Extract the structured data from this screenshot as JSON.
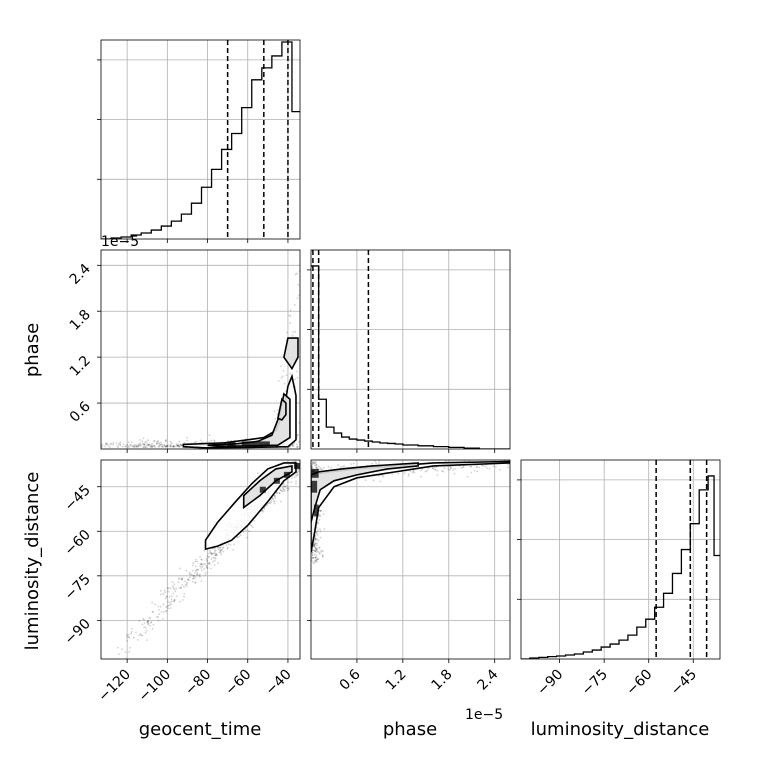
{
  "chart_data": {
    "type": "corner",
    "colors": {
      "hist_line": "#000000",
      "quantile_line": "#000000",
      "grid": "#b0b0b0",
      "sample_points": "#000000",
      "density_fill": "#000000",
      "background": "#ffffff"
    },
    "grid": true,
    "sci_offsets": {
      "top_hist": "1e−5",
      "phase_axis": "1e−5"
    },
    "parameters": [
      {
        "name": "geocent_time",
        "label": "geocent_time",
        "range": [
          -133,
          -34
        ],
        "ticks": [
          -120,
          -100,
          -80,
          -60,
          -40
        ],
        "tick_labels": [
          "−120",
          "−100",
          "−80",
          "−60",
          "−40"
        ]
      },
      {
        "name": "phase",
        "label": "phase",
        "range": [
          0.0,
          2.6
        ],
        "ticks": [
          0.6,
          1.2,
          1.8,
          2.4
        ],
        "tick_labels": [
          "0.6",
          "1.2",
          "1.8",
          "2.4"
        ]
      },
      {
        "name": "luminosity_distance",
        "label": "luminosity_distance",
        "range": [
          -103,
          -36
        ],
        "ticks": [
          -90,
          -75,
          -60,
          -45
        ],
        "tick_labels": [
          "−90",
          "−75",
          "−60",
          "−45"
        ]
      }
    ],
    "histograms": [
      {
        "param": "geocent_time",
        "quantiles": [
          -70,
          -52,
          -40
        ],
        "ylim": [
          0,
          1.0
        ],
        "bin_edges": [
          -133,
          -128,
          -123,
          -118,
          -113,
          -108,
          -103,
          -98,
          -93,
          -88,
          -83,
          -78,
          -73,
          -68,
          -63,
          -58,
          -53,
          -48,
          -43,
          -38,
          -34
        ],
        "counts": [
          0.0,
          0.005,
          0.01,
          0.02,
          0.03,
          0.045,
          0.065,
          0.09,
          0.125,
          0.18,
          0.26,
          0.35,
          0.45,
          0.53,
          0.66,
          0.8,
          0.86,
          0.92,
          0.99,
          0.64
        ]
      },
      {
        "param": "phase",
        "quantiles": [
          0.025,
          0.1,
          0.75
        ],
        "ylim": [
          0,
          1.0
        ],
        "bin_edges": [
          0.0,
          0.1,
          0.2,
          0.3,
          0.4,
          0.5,
          0.6,
          0.7,
          0.8,
          0.9,
          1.0,
          1.1,
          1.2,
          1.4,
          1.6,
          1.8,
          2.0,
          2.2,
          2.6
        ],
        "counts": [
          0.92,
          0.25,
          0.11,
          0.08,
          0.06,
          0.05,
          0.045,
          0.04,
          0.035,
          0.03,
          0.028,
          0.025,
          0.02,
          0.016,
          0.012,
          0.008,
          0.004,
          0.0
        ]
      },
      {
        "param": "luminosity_distance",
        "quantiles": [
          -57.5,
          -46,
          -40.5
        ],
        "ylim": [
          0,
          1.0
        ],
        "bin_edges": [
          -103,
          -100,
          -97,
          -94,
          -91,
          -88,
          -85,
          -82,
          -79,
          -76,
          -73,
          -70,
          -67,
          -64,
          -61,
          -58,
          -55,
          -52,
          -49,
          -46,
          -43,
          -40,
          -38,
          -36
        ],
        "counts": [
          0.0,
          0.005,
          0.008,
          0.012,
          0.015,
          0.02,
          0.025,
          0.035,
          0.045,
          0.06,
          0.075,
          0.095,
          0.12,
          0.16,
          0.2,
          0.26,
          0.33,
          0.43,
          0.55,
          0.68,
          0.85,
          0.92,
          0.52
        ]
      }
    ],
    "scatter_panels": [
      {
        "x": "geocent_time",
        "y": "phase",
        "contours": [
          [
            [
              -92,
              0.06
            ],
            [
              -72,
              0.08
            ],
            [
              -60,
              0.12
            ],
            [
              -52,
              0.15
            ],
            [
              -46,
              0.24
            ],
            [
              -42,
              0.5
            ],
            [
              -40,
              0.82
            ],
            [
              -38,
              0.95
            ],
            [
              -36,
              0.7
            ],
            [
              -36,
              0.12
            ],
            [
              -40,
              0.03
            ],
            [
              -60,
              0.02
            ],
            [
              -82,
              0.015
            ],
            [
              -92,
              0.03
            ],
            [
              -92,
              0.06
            ]
          ],
          [
            [
              -80,
              0.05
            ],
            [
              -65,
              0.07
            ],
            [
              -55,
              0.1
            ],
            [
              -48,
              0.18
            ],
            [
              -44,
              0.45
            ],
            [
              -42,
              0.72
            ],
            [
              -39,
              0.65
            ],
            [
              -39,
              0.15
            ],
            [
              -45,
              0.05
            ],
            [
              -60,
              0.04
            ],
            [
              -75,
              0.035
            ],
            [
              -80,
              0.05
            ]
          ],
          [
            [
              -42,
              1.2
            ],
            [
              -40,
              1.45
            ],
            [
              -35,
              1.45
            ],
            [
              -35,
              1.2
            ],
            [
              -38,
              1.05
            ],
            [
              -42,
              1.2
            ]
          ],
          [
            [
              -45,
              0.4
            ],
            [
              -43,
              0.65
            ],
            [
              -41,
              0.6
            ],
            [
              -41,
              0.45
            ],
            [
              -43,
              0.38
            ],
            [
              -45,
              0.4
            ]
          ]
        ],
        "dense": [
          {
            "x": -63,
            "y": 0.04,
            "w": 8,
            "h": 0.06
          },
          {
            "x": -55,
            "y": 0.04,
            "w": 6,
            "h": 0.06
          },
          {
            "x": -70,
            "y": 0.04,
            "w": 4,
            "h": 0.05
          }
        ]
      },
      {
        "x": "geocent_time",
        "y": "luminosity_distance",
        "contours": [
          [
            [
              -81,
              -63
            ],
            [
              -75,
              -57
            ],
            [
              -66,
              -50
            ],
            [
              -58,
              -44
            ],
            [
              -50,
              -39
            ],
            [
              -42,
              -37
            ],
            [
              -36,
              -37
            ],
            [
              -36,
              -40
            ],
            [
              -42,
              -43
            ],
            [
              -50,
              -50
            ],
            [
              -60,
              -58
            ],
            [
              -68,
              -63
            ],
            [
              -75,
              -65
            ],
            [
              -81,
              -66
            ],
            [
              -81,
              -63
            ]
          ],
          [
            [
              -62,
              -48
            ],
            [
              -54,
              -43
            ],
            [
              -46,
              -39
            ],
            [
              -38,
              -38
            ],
            [
              -38,
              -40
            ],
            [
              -46,
              -43
            ],
            [
              -54,
              -48
            ],
            [
              -62,
              -52
            ],
            [
              -62,
              -48
            ]
          ]
        ],
        "dense": [
          {
            "x": -42,
            "y": -42,
            "w": 3,
            "h": 2
          },
          {
            "x": -47,
            "y": -44,
            "w": 3,
            "h": 2
          },
          {
            "x": -54,
            "y": -47,
            "w": 3,
            "h": 2
          },
          {
            "x": -37,
            "y": -39,
            "w": 3,
            "h": 2
          }
        ]
      },
      {
        "x": "phase",
        "y": "luminosity_distance",
        "contours": [
          [
            [
              0.0,
              -67
            ],
            [
              0.05,
              -60
            ],
            [
              0.1,
              -52
            ],
            [
              0.3,
              -45
            ],
            [
              0.6,
              -42
            ],
            [
              1.1,
              -40
            ],
            [
              1.6,
              -38
            ],
            [
              2.6,
              -37
            ],
            [
              2.6,
              -36.5
            ],
            [
              1.6,
              -37
            ],
            [
              1.1,
              -38
            ],
            [
              0.6,
              -39
            ],
            [
              0.25,
              -40
            ],
            [
              0.0,
              -41
            ],
            [
              0.0,
              -67
            ]
          ],
          [
            [
              0.0,
              -57
            ],
            [
              0.05,
              -52
            ],
            [
              0.12,
              -46
            ],
            [
              0.3,
              -43
            ],
            [
              0.6,
              -41
            ],
            [
              1.0,
              -39
            ],
            [
              1.4,
              -38
            ],
            [
              1.4,
              -37
            ],
            [
              0.8,
              -38
            ],
            [
              0.4,
              -39
            ],
            [
              0.1,
              -40
            ],
            [
              0.0,
              -41
            ],
            [
              0.0,
              -57
            ]
          ]
        ],
        "dense": [
          {
            "x": 0.0,
            "y": -47,
            "w": 0.08,
            "h": 4
          },
          {
            "x": 0.04,
            "y": -55,
            "w": 0.06,
            "h": 4
          },
          {
            "x": 0.0,
            "y": -42,
            "w": 0.1,
            "h": 3
          }
        ]
      }
    ]
  }
}
